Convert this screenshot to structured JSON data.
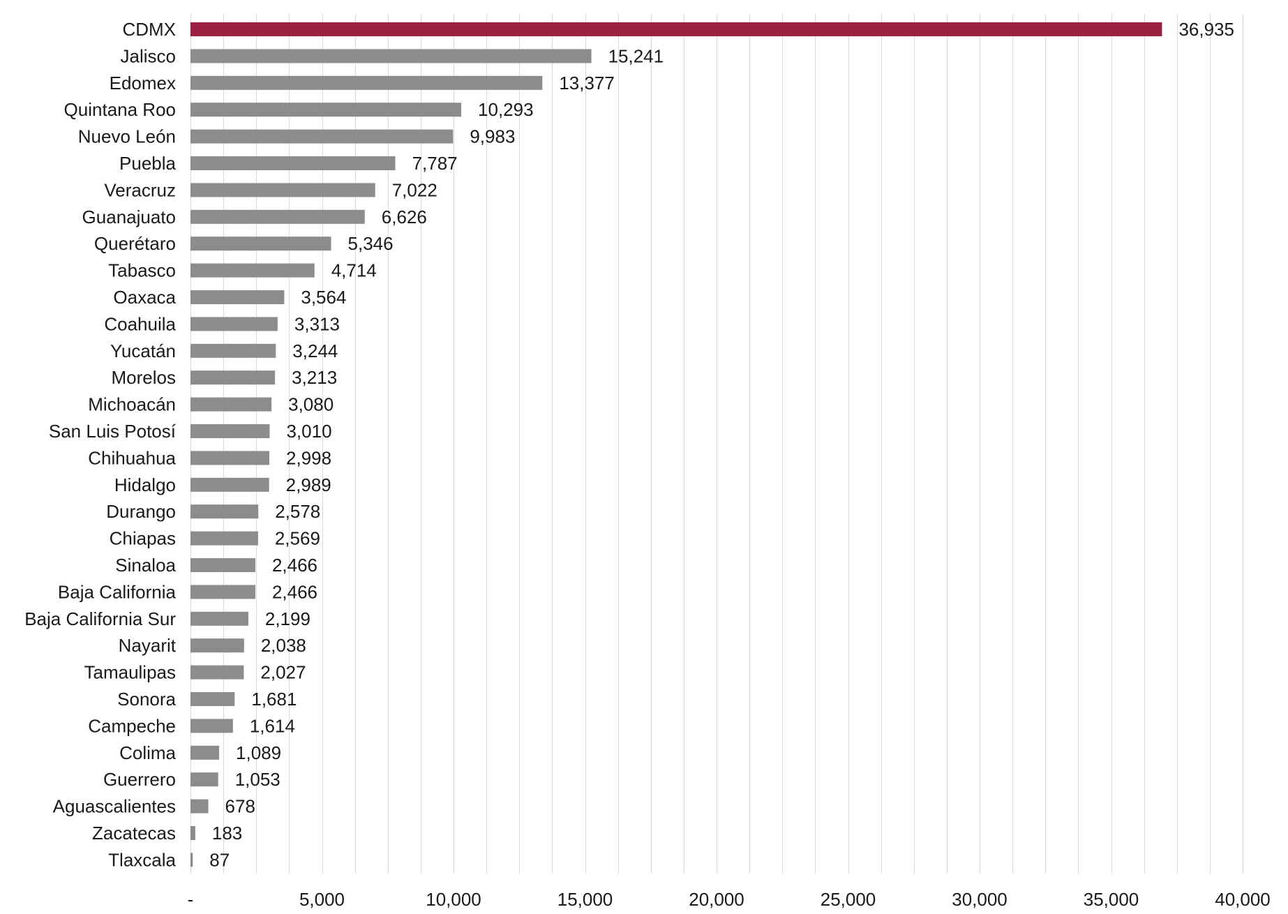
{
  "chart_data": {
    "type": "bar",
    "orientation": "horizontal",
    "categories": [
      "CDMX",
      "Jalisco",
      "Edomex",
      "Quintana Roo",
      "Nuevo León",
      "Puebla",
      "Veracruz",
      "Guanajuato",
      "Querétaro",
      "Tabasco",
      "Oaxaca",
      "Coahuila",
      "Yucatán",
      "Morelos",
      "Michoacán",
      "San Luis Potosí",
      "Chihuahua",
      "Hidalgo",
      "Durango",
      "Chiapas",
      "Sinaloa",
      "Baja California",
      "Baja California Sur",
      "Nayarit",
      "Tamaulipas",
      "Sonora",
      "Campeche",
      "Colima",
      "Guerrero",
      "Aguascalientes",
      "Zacatecas",
      "Tlaxcala"
    ],
    "values": [
      36935,
      15241,
      13377,
      10293,
      9983,
      7787,
      7022,
      6626,
      5346,
      4714,
      3564,
      3313,
      3244,
      3213,
      3080,
      3010,
      2998,
      2989,
      2578,
      2569,
      2466,
      2466,
      2199,
      2038,
      2027,
      1681,
      1614,
      1089,
      1053,
      678,
      183,
      87
    ],
    "value_labels": [
      "36,935",
      "15,241",
      "13,377",
      "10,293",
      "9,983",
      "7,787",
      "7,022",
      "6,626",
      "5,346",
      "4,714",
      "3,564",
      "3,313",
      "3,244",
      "3,213",
      "3,080",
      "3,010",
      "2,998",
      "2,989",
      "2,578",
      "2,569",
      "2,466",
      "2,466",
      "2,199",
      "2,038",
      "2,027",
      "1,681",
      "1,614",
      "1,089",
      "1,053",
      "678",
      "183",
      "87"
    ],
    "xlim": [
      0,
      40000
    ],
    "x_ticks": [
      0,
      5000,
      10000,
      15000,
      20000,
      25000,
      30000,
      35000,
      40000
    ],
    "x_tick_labels": [
      "-",
      "5,000",
      "10,000",
      "15,000",
      "20,000",
      "25,000",
      "30,000",
      "35,000",
      "40,000"
    ],
    "grid": "vertical",
    "title": "",
    "xlabel": "",
    "ylabel": "",
    "colors": {
      "highlight": "#9b2242",
      "bar": "#8c8c8c",
      "grid": "#d9d9d9"
    }
  }
}
